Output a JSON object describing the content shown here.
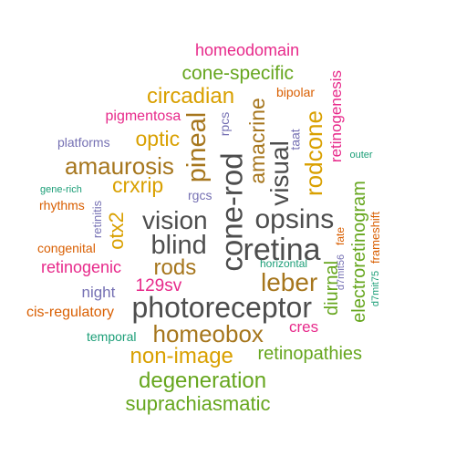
{
  "palette": {
    "dark_gray": "#4D4D4D",
    "magenta": "#E7298A",
    "green": "#66A61E",
    "mustard": "#D9A000",
    "brown": "#A6761D",
    "purple": "#7570B3",
    "teal": "#1B9E77",
    "orange": "#D95F02"
  },
  "words": [
    {
      "text": "homeodomain",
      "color": "#E7298A"
    },
    {
      "text": "cone-specific",
      "color": "#66A61E"
    },
    {
      "text": "retinogenesis",
      "color": "#E7298A"
    },
    {
      "text": "bipolar",
      "color": "#D95F02"
    },
    {
      "text": "circadian",
      "color": "#D9A000"
    },
    {
      "text": "amacrine",
      "color": "#A6761D"
    },
    {
      "text": "pigmentosa",
      "color": "#E7298A"
    },
    {
      "text": "rpcs",
      "color": "#7570B3"
    },
    {
      "text": "rodcone",
      "color": "#D9A000"
    },
    {
      "text": "taat",
      "color": "#7570B3"
    },
    {
      "text": "platforms",
      "color": "#7570B3"
    },
    {
      "text": "optic",
      "color": "#D9A000"
    },
    {
      "text": "pineal",
      "color": "#A6761D"
    },
    {
      "text": "outer",
      "color": "#1B9E77"
    },
    {
      "text": "visual",
      "color": "#4D4D4D"
    },
    {
      "text": "amaurosis",
      "color": "#A6761D"
    },
    {
      "text": "crxrip",
      "color": "#D9A000"
    },
    {
      "text": "gene-rich",
      "color": "#1B9E77"
    },
    {
      "text": "rgcs",
      "color": "#7570B3"
    },
    {
      "text": "rhythms",
      "color": "#D95F02"
    },
    {
      "text": "cone-rod",
      "color": "#4D4D4D"
    },
    {
      "text": "electroretinogram",
      "color": "#66A61E"
    },
    {
      "text": "retinitis",
      "color": "#7570B3"
    },
    {
      "text": "otx2",
      "color": "#D9A000"
    },
    {
      "text": "vision",
      "color": "#4D4D4D"
    },
    {
      "text": "opsins",
      "color": "#4D4D4D"
    },
    {
      "text": "fate",
      "color": "#D95F02"
    },
    {
      "text": "frameshift",
      "color": "#D95F02"
    },
    {
      "text": "blind",
      "color": "#4D4D4D"
    },
    {
      "text": "retina",
      "color": "#4D4D4D"
    },
    {
      "text": "congenital",
      "color": "#D95F02"
    },
    {
      "text": "horizontal",
      "color": "#1B9E77"
    },
    {
      "text": "d7mit56",
      "color": "#7570B3"
    },
    {
      "text": "retinogenic",
      "color": "#E7298A"
    },
    {
      "text": "rods",
      "color": "#A6761D"
    },
    {
      "text": "diurnal",
      "color": "#66A61E"
    },
    {
      "text": "d7mit75",
      "color": "#1B9E77"
    },
    {
      "text": "leber",
      "color": "#A6761D"
    },
    {
      "text": "129sv",
      "color": "#E7298A"
    },
    {
      "text": "night",
      "color": "#7570B3"
    },
    {
      "text": "photoreceptor",
      "color": "#4D4D4D"
    },
    {
      "text": "cis-regulatory",
      "color": "#D95F02"
    },
    {
      "text": "homeobox",
      "color": "#A6761D"
    },
    {
      "text": "cres",
      "color": "#E7298A"
    },
    {
      "text": "temporal",
      "color": "#1B9E77"
    },
    {
      "text": "non-image",
      "color": "#D9A000"
    },
    {
      "text": "retinopathies",
      "color": "#66A61E"
    },
    {
      "text": "degeneration",
      "color": "#66A61E"
    },
    {
      "text": "suprachiasmatic",
      "color": "#66A61E"
    }
  ]
}
